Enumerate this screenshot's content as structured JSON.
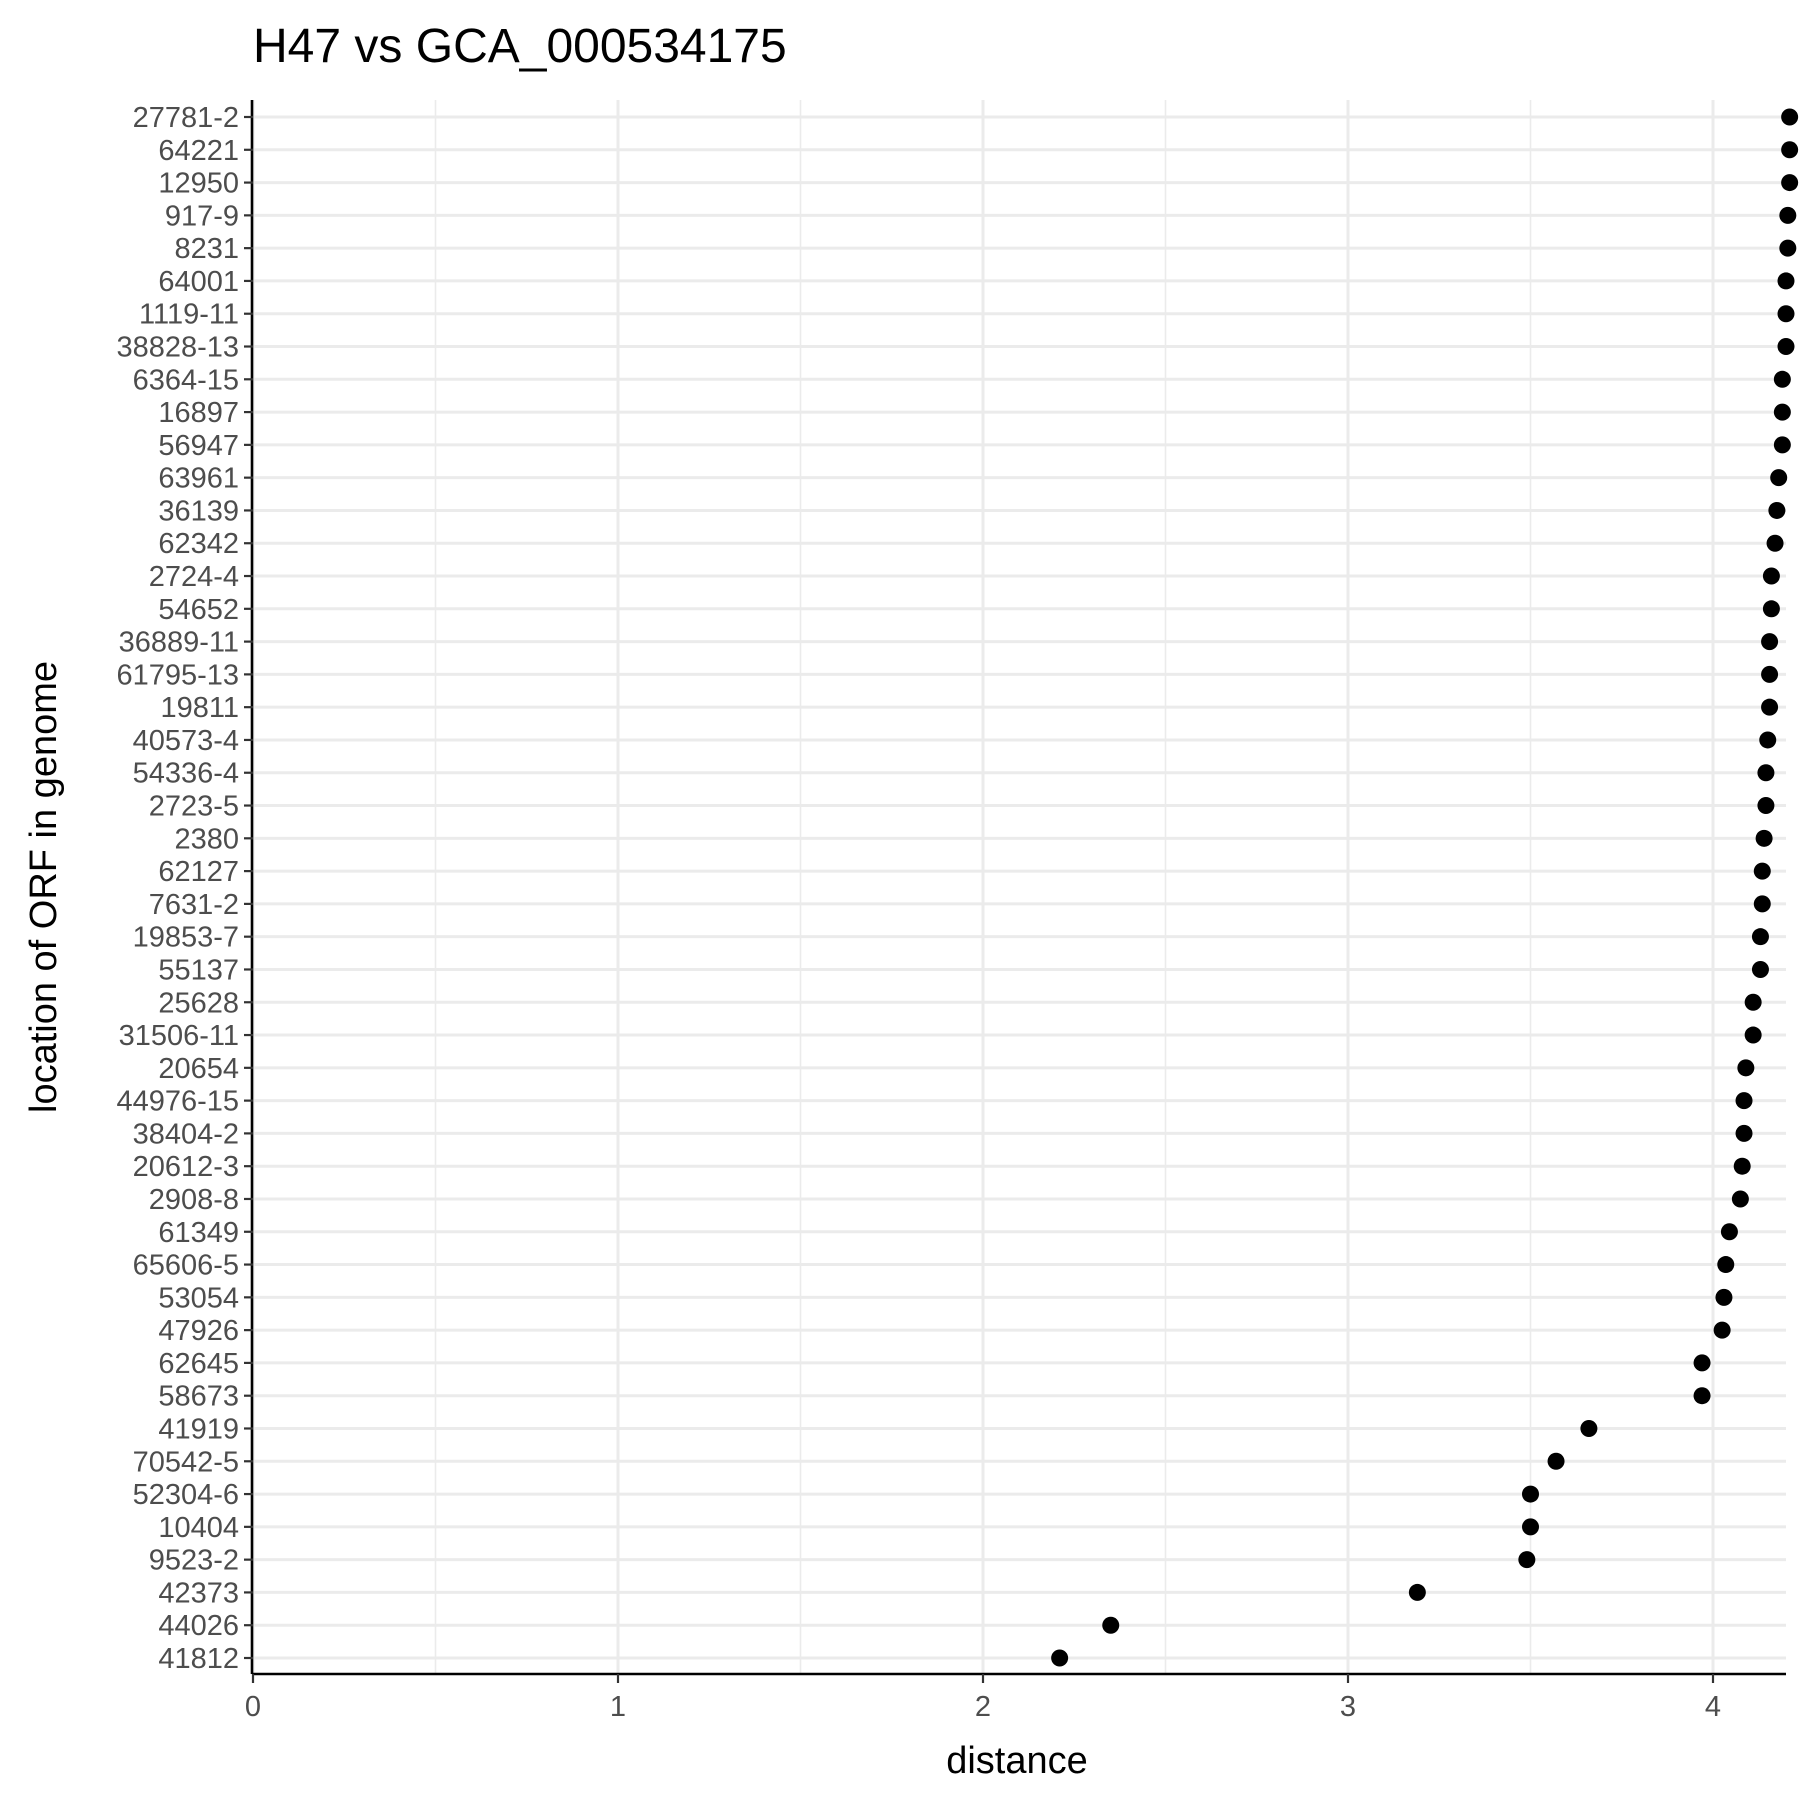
{
  "chart_data": {
    "type": "scatter",
    "title": "H47 vs GCA_000534175",
    "xlabel": "distance",
    "ylabel": "location of ORF in genome",
    "xlim": [
      0,
      4.2
    ],
    "xticks": [
      0,
      1,
      2,
      3,
      4
    ],
    "grid": true,
    "point_color": "#000000",
    "categories": [
      "27781-2",
      "64221",
      "12950",
      "917-9",
      "8231",
      "64001",
      "1119-11",
      "38828-13",
      "6364-15",
      "16897",
      "56947",
      "63961",
      "36139",
      "62342",
      "2724-4",
      "54652",
      "36889-11",
      "61795-13",
      "19811",
      "40573-4",
      "54336-4",
      "2723-5",
      "2380",
      "62127",
      "7631-2",
      "19853-7",
      "55137",
      "25628",
      "31506-11",
      "20654",
      "44976-15",
      "38404-2",
      "20612-3",
      "2908-8",
      "61349",
      "65606-5",
      "53054",
      "47926",
      "62645",
      "58673",
      "41919",
      "70542-5",
      "52304-6",
      "10404",
      "9523-2",
      "42373",
      "44026",
      "41812"
    ],
    "values": [
      4.21,
      4.21,
      4.21,
      4.205,
      4.205,
      4.2,
      4.2,
      4.2,
      4.19,
      4.19,
      4.19,
      4.18,
      4.175,
      4.17,
      4.16,
      4.16,
      4.155,
      4.155,
      4.155,
      4.15,
      4.145,
      4.145,
      4.14,
      4.135,
      4.135,
      4.13,
      4.13,
      4.11,
      4.11,
      4.09,
      4.085,
      4.085,
      4.08,
      4.075,
      4.045,
      4.035,
      4.03,
      4.025,
      3.97,
      3.97,
      3.66,
      3.57,
      3.5,
      3.5,
      3.49,
      3.19,
      2.35,
      2.21
    ]
  }
}
